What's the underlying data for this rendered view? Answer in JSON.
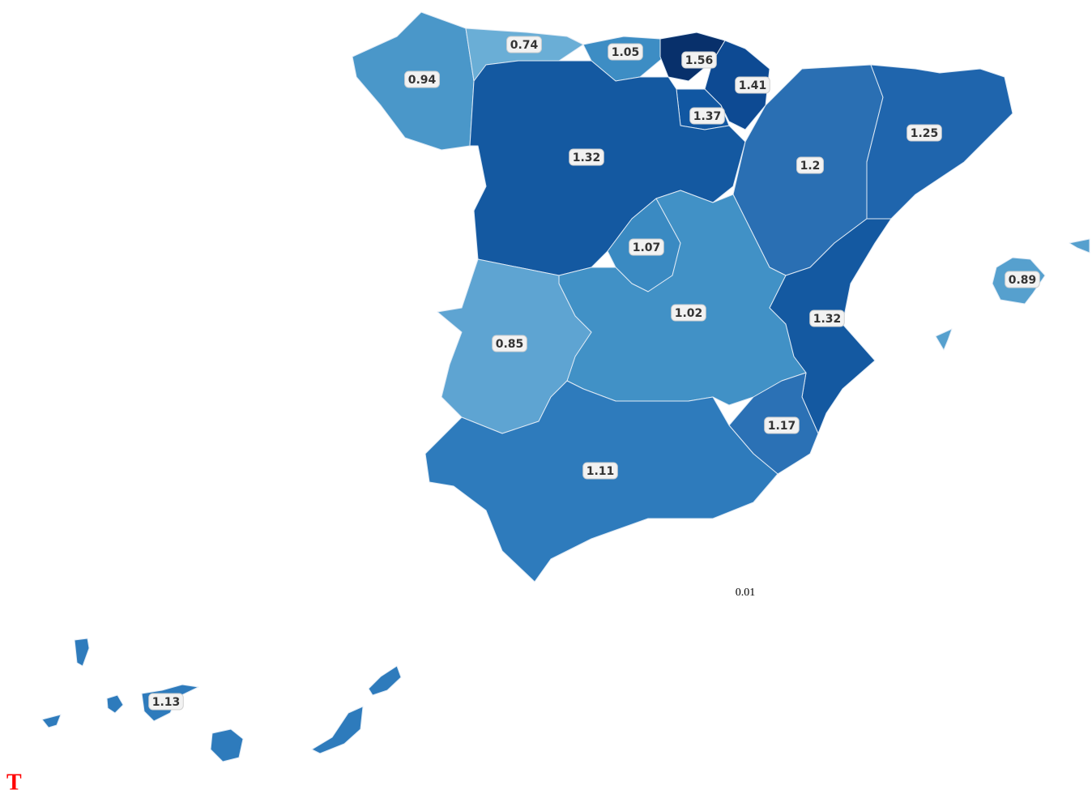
{
  "map": {
    "regions": [
      {
        "value": 0.94,
        "color": "#4a97c9"
      },
      {
        "value": 0.74,
        "color": "#6aaed6"
      },
      {
        "value": 1.05,
        "color": "#3d8dc4"
      },
      {
        "value": 1.56,
        "color": "#08306b"
      },
      {
        "value": 1.41,
        "color": "#0d4a93"
      },
      {
        "value": 1.37,
        "color": "#1157a2"
      },
      {
        "value": 1.32,
        "color": "#1459a1"
      },
      {
        "value": 1.2,
        "color": "#2a6fb3"
      },
      {
        "value": 1.25,
        "color": "#1f65ad"
      },
      {
        "value": 1.07,
        "color": "#3a8ac2"
      },
      {
        "value": 1.02,
        "color": "#4191c6"
      },
      {
        "value": 0.85,
        "color": "#5ea4d2"
      },
      {
        "value": 1.32,
        "color": "#1459a1"
      },
      {
        "value": 1.17,
        "color": "#2b71b5"
      },
      {
        "value": 1.11,
        "color": "#2e7bbc"
      },
      {
        "value": 0.89,
        "color": "#56a0ce"
      },
      {
        "value": 1.13,
        "color": "#2e7bbc"
      }
    ],
    "annotation": "0.01",
    "corner_text": "T"
  }
}
